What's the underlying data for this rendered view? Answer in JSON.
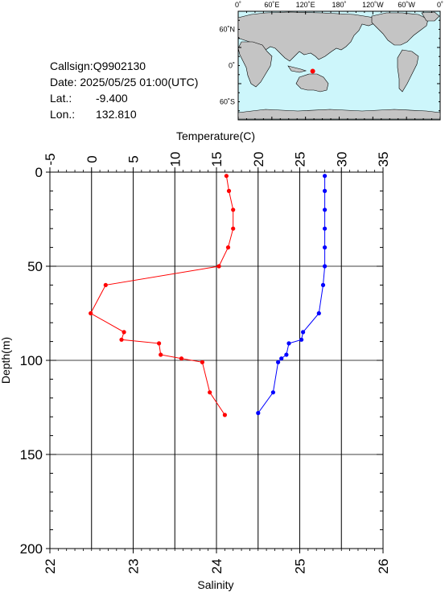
{
  "info": {
    "callsign": "Callsign:Q9902130",
    "date": "Date:  2025/05/25 01:00(UTC)",
    "lat_label": "Lat.:",
    "lat_value": "-9.400",
    "lon_label": "Lon.:",
    "lon_value": "132.810"
  },
  "map": {
    "top_labels": [
      "0˚",
      "60˚E",
      "120˚E",
      "180˚",
      "120˚W",
      "60˚W",
      "0˚"
    ],
    "left_labels": [
      "60˚N",
      "0˚",
      "60˚S"
    ],
    "ocean_color": "#cdf6fb",
    "land_color": "#c4c4c4",
    "marker_color": "#ff0000",
    "marker": {
      "lon": 132.81,
      "lat": -9.4
    }
  },
  "chart_data": {
    "type": "line",
    "top_axis": {
      "label": "Temperature(C)",
      "range": [
        -5,
        35
      ],
      "ticks": [
        -5,
        0,
        5,
        10,
        15,
        20,
        25,
        30,
        35
      ]
    },
    "bottom_axis": {
      "label": "Salinity",
      "range": [
        22,
        26
      ],
      "ticks": [
        22,
        23,
        24,
        25,
        26
      ]
    },
    "y_axis": {
      "label": "Depth(m)",
      "range": [
        0,
        200
      ],
      "inverted": true,
      "ticks": [
        0,
        50,
        100,
        150,
        200
      ]
    },
    "grid": true,
    "series": [
      {
        "axis": "top",
        "color": "#ff0000",
        "depth": [
          2,
          10,
          20,
          30,
          40,
          50,
          60,
          75,
          85,
          89,
          91,
          97,
          99,
          101,
          117,
          129
        ],
        "values": [
          16.2,
          16.5,
          17.0,
          17.0,
          16.4,
          15.3,
          1.7,
          -0.1,
          3.9,
          3.6,
          8.1,
          8.3,
          10.8,
          13.3,
          14.2,
          16.0
        ]
      },
      {
        "axis": "bottom",
        "color": "#0000ff",
        "depth": [
          2,
          10,
          20,
          30,
          40,
          50,
          60,
          75,
          85,
          89,
          91,
          97,
          99,
          101,
          117,
          128
        ],
        "values": [
          25.3,
          25.3,
          25.3,
          25.3,
          25.3,
          25.3,
          25.28,
          25.23,
          25.04,
          25.02,
          24.87,
          24.84,
          24.78,
          24.74,
          24.68,
          24.5
        ]
      }
    ]
  }
}
